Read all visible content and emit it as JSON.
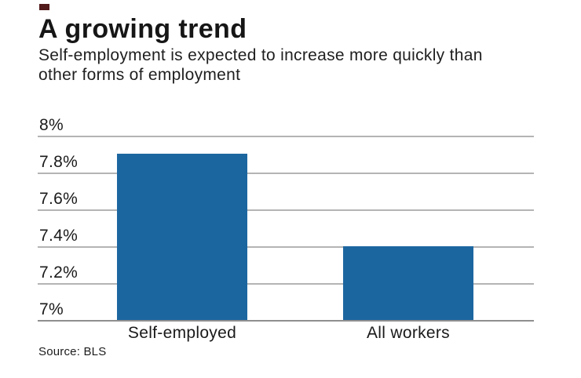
{
  "brand": {
    "accent_square_color": "#521a1b"
  },
  "header": {
    "title": "A growing trend",
    "subtitle_line1": "Self-employment is expected to increase more quickly than",
    "subtitle_line2": "other forms of employment"
  },
  "chart_data": {
    "type": "bar",
    "title": "A growing trend",
    "subtitle": "Self-employment is expected to increase more quickly than other forms of employment",
    "categories": [
      "Self-employed",
      "All workers"
    ],
    "values": [
      7.9,
      7.4
    ],
    "value_unit": "%",
    "xlabel": "",
    "ylabel": "",
    "ylim": [
      7,
      8
    ],
    "yticks": [
      {
        "label": "8%",
        "value": 8.0
      },
      {
        "label": "7.8%",
        "value": 7.8
      },
      {
        "label": "7.6%",
        "value": 7.6
      },
      {
        "label": "7.4%",
        "value": 7.4
      },
      {
        "label": "7.2%",
        "value": 7.2
      },
      {
        "label": "7%",
        "value": 7.0
      }
    ],
    "grid": "horizontal",
    "legend": "none",
    "bar_color": "#1c66a0",
    "gridline_color": "#b4b4b4",
    "axis_line_color": "#8f8f8f",
    "text_color": "#1a1a1a"
  },
  "source": {
    "label": "Source: BLS"
  }
}
